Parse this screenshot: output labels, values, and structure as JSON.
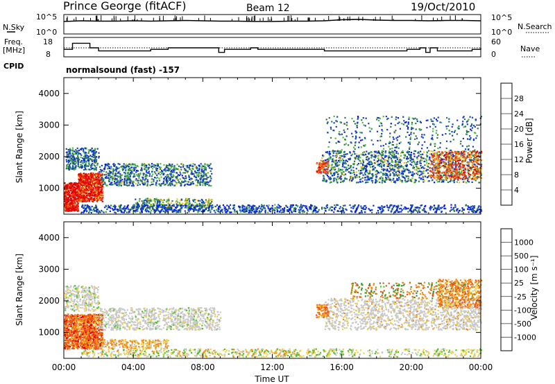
{
  "header": {
    "station": "Prince George (fitACF)",
    "beam": "Beam 12",
    "date": "19/Oct/2010"
  },
  "noise_panel": {
    "left_label": "N.Sky",
    "right_label": "N.Search",
    "left_ticks": [
      "10^5",
      "10^0"
    ],
    "right_ticks": [
      "10^5",
      "10^0"
    ]
  },
  "freq_panel": {
    "left_label_1": "Freq.",
    "left_label_2": "[MHz]",
    "right_label": "Nave",
    "left_ticks": [
      "18",
      "8"
    ],
    "right_ticks": [
      "60",
      "0"
    ]
  },
  "cpid": {
    "label": "CPID",
    "mode": "normalsound (fast) -157"
  },
  "chart_data": [
    {
      "type": "line",
      "name": "noise",
      "x": [
        "00:00",
        "01:00",
        "02:00",
        "03:00",
        "04:00",
        "05:00",
        "06:00",
        "07:00",
        "08:00",
        "09:00",
        "10:00",
        "11:00",
        "12:00",
        "13:00",
        "14:00",
        "15:00",
        "16:00",
        "17:00",
        "18:00",
        "19:00",
        "20:00",
        "21:00",
        "22:00",
        "23:00",
        "24:00"
      ],
      "series": [
        {
          "values": [
            3.2,
            3.4,
            3.3,
            3.3,
            3.4,
            3.3,
            3.4,
            3.5,
            3.4,
            3.3,
            3.3,
            3.2,
            3.2,
            3.3,
            3.3,
            3.4,
            3.7,
            3.8,
            3.6,
            3.5,
            3.5,
            3.4,
            3.5,
            3.5,
            3.4
          ]
        }
      ]
    },
    {
      "type": "line",
      "name": "frequency",
      "xlabel": "Time UT",
      "x": [
        "00:00",
        "00:30",
        "01:00",
        "01:30",
        "02:00",
        "03:00",
        "04:00",
        "05:00",
        "06:00",
        "07:00",
        "08:00",
        "08:55",
        "09:15",
        "10:00",
        "10:45",
        "11:10",
        "12:00",
        "14:00",
        "15:00",
        "16:00",
        "17:00",
        "18:00",
        "19:00",
        "19:45",
        "20:30",
        "20:50",
        "21:05",
        "21:30",
        "22:30",
        "23:30",
        "24:00"
      ],
      "series": [
        {
          "values": [
            12,
            16,
            16,
            13,
            11,
            11,
            11,
            12,
            13,
            13,
            13,
            10,
            12,
            12,
            13,
            12,
            12,
            12,
            11,
            11,
            11,
            11,
            11,
            12,
            13,
            10,
            13,
            11,
            11,
            12,
            13
          ]
        }
      ],
      "ylim": [
        8,
        18
      ]
    },
    {
      "type": "heatmap",
      "name": "power",
      "xlabel": "",
      "ylabel": "Slant Range [km]",
      "x_ticks": [
        "00:00",
        "04:00",
        "08:00",
        "12:00",
        "16:00",
        "20:00",
        "00:00"
      ],
      "y_ticks": [
        "1000",
        "2000",
        "3000",
        "4000"
      ],
      "xlim": [
        0,
        24
      ],
      "ylim": [
        180,
        4500
      ],
      "colorbar": {
        "label": "Power [dB]",
        "ticks": [
          "28",
          "24",
          "20",
          "16",
          "12",
          "8",
          "4"
        ],
        "colors": [
          "#0018e8",
          "#1340c8",
          "#2e7a40",
          "#4fb848",
          "#f2c020",
          "#f07a18",
          "#e83018",
          "#e00000"
        ]
      }
    },
    {
      "type": "heatmap",
      "name": "velocity",
      "xlabel": "Time UT",
      "ylabel": "Slant Range [km]",
      "x_ticks": [
        "00:00",
        "04:00",
        "08:00",
        "12:00",
        "16:00",
        "20:00",
        "00:00"
      ],
      "y_ticks": [
        "1000",
        "2000",
        "3000",
        "4000"
      ],
      "xlim": [
        0,
        24
      ],
      "ylim": [
        180,
        4500
      ],
      "colorbar": {
        "label": "Velocity [m s⁻¹]",
        "ticks": [
          "1000",
          "500",
          "100",
          "25",
          "-25",
          "-100",
          "-500",
          "-1000"
        ],
        "colors": [
          "#1c3cc8",
          "#2e60a8",
          "#3c8c3c",
          "#50c030",
          "#c8c8c8",
          "#f0d040",
          "#f08c18",
          "#f05010",
          "#e00000"
        ]
      }
    }
  ]
}
